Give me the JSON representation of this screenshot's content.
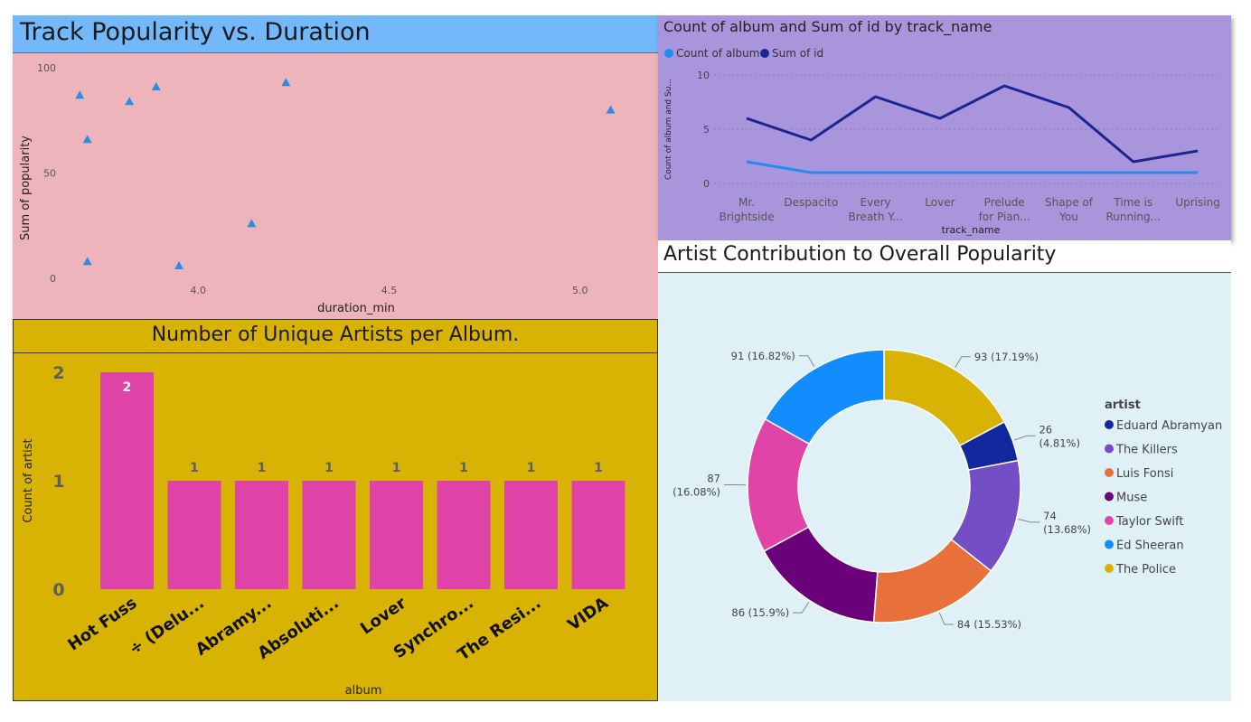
{
  "colors": {
    "scatter_panel_bg": "#edb4bb",
    "scatter_title_bg": "#74b8fc",
    "line_panel_bg": "#a995dc",
    "bar_panel_bg": "#d9b304",
    "donut_panel_bg": "#dff0f7",
    "bar_fill": "#e043a8",
    "scatter_marker": "#2a8de0",
    "line_album": "#1f8cf0",
    "line_id": "#1b2590"
  },
  "charts": {
    "scatter": {
      "title": "Track Popularity vs. Duration",
      "chart_data": {
        "type": "scatter",
        "title": "Track Popularity vs. Duration",
        "xlabel": "duration_min",
        "ylabel": "Sum of popularity",
        "xlim": [
          3.68,
          5.1
        ],
        "ylim": [
          0,
          100
        ],
        "x_ticks": [
          "4.0",
          "4.5",
          "5.0"
        ],
        "y_ticks": [
          "0",
          "50",
          "100"
        ],
        "marker": "triangle",
        "points": [
          {
            "x": 3.69,
            "y": 87
          },
          {
            "x": 3.71,
            "y": 66
          },
          {
            "x": 3.71,
            "y": 8
          },
          {
            "x": 3.82,
            "y": 84
          },
          {
            "x": 3.89,
            "y": 91
          },
          {
            "x": 3.95,
            "y": 6
          },
          {
            "x": 4.14,
            "y": 26
          },
          {
            "x": 4.23,
            "y": 93
          },
          {
            "x": 5.08,
            "y": 80
          }
        ]
      }
    },
    "line": {
      "title": "Count of album and Sum of id by track_name",
      "chart_data": {
        "type": "line",
        "title": "Count of album and Sum of id by track_name",
        "xlabel": "track_name",
        "ylabel": "Count of album and Su...",
        "ylim": [
          0,
          10
        ],
        "y_ticks": [
          "0",
          "5",
          "10"
        ],
        "legend_position": "top-left",
        "categories": [
          [
            "Mr.",
            "Brightside"
          ],
          [
            "Despacito"
          ],
          [
            "Every",
            "Breath Y..."
          ],
          [
            "Lover"
          ],
          [
            "Prelude",
            "for Pian..."
          ],
          [
            "Shape of",
            "You"
          ],
          [
            "Time is",
            "Running..."
          ],
          [
            "Uprising"
          ]
        ],
        "series": [
          {
            "name": "Count of album",
            "values": [
              2,
              1,
              1,
              1,
              1,
              1,
              1,
              1
            ]
          },
          {
            "name": "Sum of id",
            "values": [
              6,
              4,
              8,
              6,
              9,
              7,
              2,
              3
            ]
          }
        ]
      }
    },
    "bar": {
      "title": "Number of Unique Artists per Album.",
      "chart_data": {
        "type": "bar",
        "title": "Number of Unique Artists per Album.",
        "xlabel": "album",
        "ylabel": "Count of artist",
        "ylim": [
          0,
          2
        ],
        "y_ticks": [
          "0",
          "1",
          "2"
        ],
        "categories": [
          "Hot Fuss",
          "÷ (Delu...",
          "Abramy...",
          "Absoluti...",
          "Lover",
          "Synchro...",
          "The Resi...",
          "VIDA"
        ],
        "values": [
          2,
          1,
          1,
          1,
          1,
          1,
          1,
          1
        ],
        "data_labels": [
          "2",
          "1",
          "1",
          "1",
          "1",
          "1",
          "1",
          "1"
        ]
      }
    },
    "donut": {
      "title": "Artist Contribution to Overall Popularity",
      "chart_data": {
        "type": "pie",
        "title": "Artist Contribution to Overall Popularity",
        "legend_title": "artist",
        "legend_position": "right",
        "slices": [
          {
            "label": "The Police",
            "value": 93,
            "data_label": [
              "93 (17.19%)"
            ],
            "color": "#d9b304"
          },
          {
            "label": "Eduard Abramyan",
            "value": 26,
            "data_label": [
              "26",
              "(4.81%)"
            ],
            "color": "#13289c"
          },
          {
            "label": "The Killers",
            "value": 74,
            "data_label": [
              "74",
              "(13.68%)"
            ],
            "color": "#744ec4"
          },
          {
            "label": "Luis Fonsi",
            "value": 84,
            "data_label": [
              "84 (15.53%)"
            ],
            "color": "#e8703a"
          },
          {
            "label": "Muse",
            "value": 86,
            "data_label": [
              "86 (15.9%)"
            ],
            "color": "#6b007b"
          },
          {
            "label": "Taylor Swift",
            "value": 87,
            "data_label": [
              "87",
              "(16.08%)"
            ],
            "color": "#e044a7"
          },
          {
            "label": "Ed Sheeran",
            "value": 91,
            "data_label": [
              "91 (16.82%)"
            ],
            "color": "#118dff"
          }
        ],
        "legend_order": [
          "Eduard Abramyan",
          "The Killers",
          "Luis Fonsi",
          "Muse",
          "Taylor Swift",
          "Ed Sheeran",
          "The Police"
        ]
      }
    }
  }
}
